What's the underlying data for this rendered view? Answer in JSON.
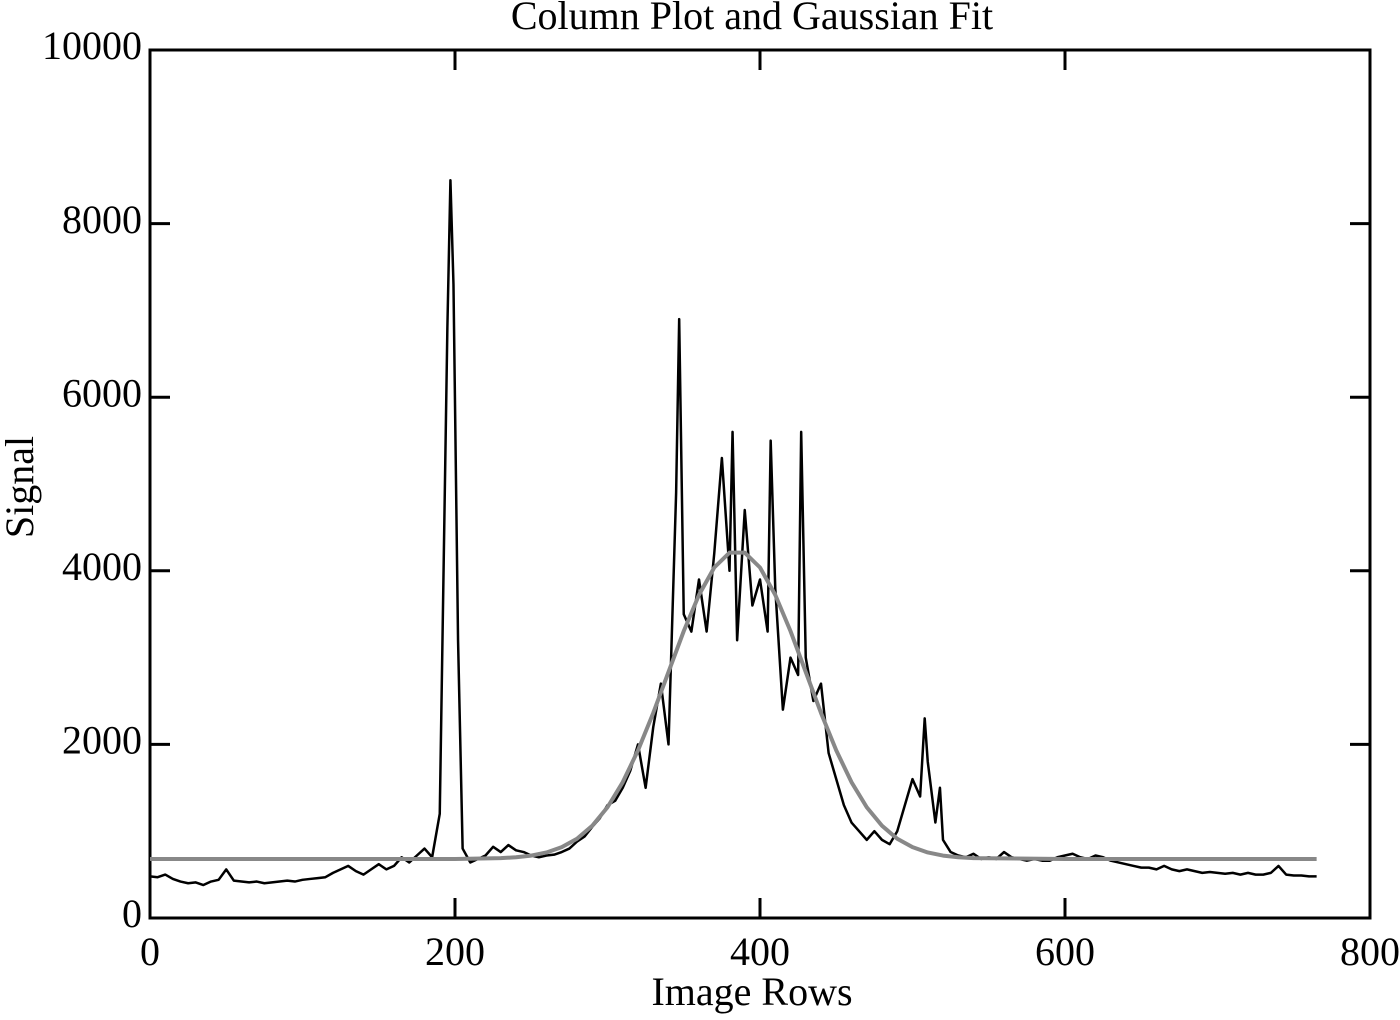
{
  "chart_data": {
    "type": "line",
    "title": "Column Plot and Gaussian Fit",
    "x_label": "Image Rows",
    "y_label": "Signal",
    "xlim": [
      0,
      800
    ],
    "xticks": [
      0,
      200,
      400,
      600,
      800
    ],
    "ylim": [
      0,
      10000
    ],
    "yticks": [
      0,
      2000,
      4000,
      6000,
      8000,
      10000
    ],
    "grid": false,
    "series": [
      {
        "color": "#000000",
        "x": [
          0,
          5,
          10,
          15,
          20,
          25,
          30,
          35,
          40,
          45,
          50,
          55,
          60,
          65,
          70,
          75,
          80,
          85,
          90,
          95,
          100,
          105,
          110,
          115,
          120,
          125,
          130,
          135,
          140,
          145,
          150,
          155,
          160,
          165,
          170,
          175,
          180,
          185,
          190,
          195,
          197,
          199,
          202,
          205,
          210,
          215,
          220,
          225,
          230,
          235,
          240,
          245,
          250,
          255,
          260,
          265,
          270,
          275,
          280,
          285,
          290,
          295,
          300,
          305,
          310,
          315,
          320,
          325,
          330,
          335,
          340,
          345,
          347,
          350,
          355,
          360,
          365,
          370,
          375,
          380,
          382,
          385,
          390,
          395,
          400,
          405,
          407,
          410,
          415,
          420,
          425,
          427,
          430,
          435,
          440,
          445,
          450,
          455,
          460,
          465,
          470,
          475,
          480,
          485,
          490,
          495,
          500,
          505,
          508,
          510,
          515,
          518,
          520,
          525,
          530,
          535,
          540,
          545,
          550,
          555,
          560,
          565,
          570,
          575,
          580,
          585,
          590,
          595,
          600,
          605,
          610,
          615,
          620,
          625,
          630,
          635,
          640,
          645,
          650,
          655,
          660,
          665,
          670,
          675,
          680,
          685,
          690,
          695,
          700,
          705,
          710,
          715,
          720,
          725,
          730,
          735,
          740,
          745,
          750,
          755,
          760,
          765
        ],
        "values": [
          480,
          470,
          500,
          450,
          420,
          400,
          410,
          380,
          420,
          440,
          560,
          430,
          420,
          410,
          420,
          400,
          410,
          420,
          430,
          420,
          440,
          450,
          460,
          470,
          520,
          560,
          600,
          540,
          500,
          560,
          620,
          560,
          600,
          700,
          640,
          720,
          800,
          700,
          1200,
          6800,
          8500,
          7300,
          3200,
          800,
          640,
          680,
          720,
          820,
          760,
          840,
          780,
          760,
          720,
          700,
          720,
          730,
          760,
          800,
          880,
          940,
          1050,
          1150,
          1300,
          1350,
          1500,
          1700,
          2000,
          1500,
          2200,
          2700,
          2000,
          4900,
          6900,
          3500,
          3300,
          3900,
          3300,
          4200,
          5300,
          4000,
          5600,
          3200,
          4700,
          3600,
          3900,
          3300,
          5500,
          3800,
          2400,
          3000,
          2800,
          5600,
          3000,
          2500,
          2700,
          1900,
          1600,
          1300,
          1100,
          1000,
          900,
          1000,
          900,
          850,
          1000,
          1300,
          1600,
          1400,
          2300,
          1800,
          1100,
          1500,
          900,
          760,
          720,
          700,
          740,
          680,
          700,
          680,
          760,
          700,
          680,
          660,
          680,
          660,
          660,
          700,
          720,
          740,
          700,
          680,
          720,
          700,
          660,
          640,
          620,
          600,
          580,
          580,
          560,
          600,
          560,
          540,
          560,
          540,
          520,
          530,
          520,
          510,
          520,
          500,
          520,
          500,
          500,
          520,
          600,
          500,
          490,
          490,
          480,
          480
        ]
      },
      {
        "color": "#888888",
        "x": [
          0,
          100,
          200,
          230,
          240,
          250,
          260,
          270,
          280,
          290,
          300,
          310,
          320,
          330,
          340,
          350,
          360,
          370,
          380,
          390,
          400,
          410,
          420,
          430,
          440,
          450,
          460,
          470,
          480,
          490,
          500,
          510,
          520,
          530,
          540,
          600,
          700,
          765
        ],
        "values": [
          680,
          680,
          680,
          690,
          700,
          719,
          755,
          816,
          913,
          1063,
          1276,
          1565,
          1931,
          2362,
          2834,
          3305,
          3723,
          4038,
          4209,
          4209,
          4038,
          3723,
          3305,
          2834,
          2362,
          1931,
          1565,
          1276,
          1063,
          913,
          816,
          755,
          719,
          700,
          690,
          680,
          680,
          680
        ]
      }
    ]
  }
}
